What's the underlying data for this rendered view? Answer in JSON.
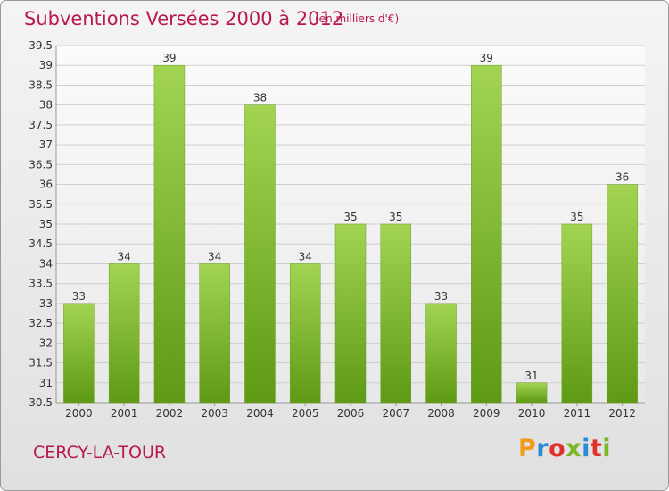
{
  "header": {
    "title": "Subventions Versées 2000 à 2012",
    "subtitle": "(en milliers d'€)"
  },
  "footer": {
    "location": "CERCY-LA-TOUR",
    "logo_letters": [
      "P",
      "r",
      "o",
      "x",
      "i",
      "t",
      "i"
    ],
    "logo_colors": [
      "#f29a1a",
      "#2a8ad6",
      "#e0322b",
      "#7ab828",
      "#2a8ad6",
      "#e0322b",
      "#7ab828"
    ]
  },
  "chart_data": {
    "type": "bar",
    "categories": [
      "2000",
      "2001",
      "2002",
      "2003",
      "2004",
      "2005",
      "2006",
      "2007",
      "2008",
      "2009",
      "2010",
      "2011",
      "2012"
    ],
    "values": [
      33,
      34,
      39,
      34,
      38,
      34,
      35,
      35,
      33,
      39,
      31,
      35,
      36
    ],
    "data_labels": [
      "33",
      "34",
      "39",
      "34",
      "38",
      "34",
      "35",
      "35",
      "33",
      "39",
      "31",
      "35",
      "36"
    ],
    "title": "Subventions Versées 2000 à 2012",
    "xlabel": "",
    "ylabel": "",
    "ylim": [
      30.5,
      39.5
    ],
    "yticks": [
      "30.5",
      "31",
      "31.5",
      "32",
      "32.5",
      "33",
      "33.5",
      "34",
      "34.5",
      "35",
      "35.5",
      "36",
      "36.5",
      "37",
      "37.5",
      "38",
      "38.5",
      "39",
      "39.5"
    ],
    "grid": true,
    "legend": "none",
    "bar_color_light": "#a2d452",
    "bar_color_dark": "#5e9a14"
  }
}
